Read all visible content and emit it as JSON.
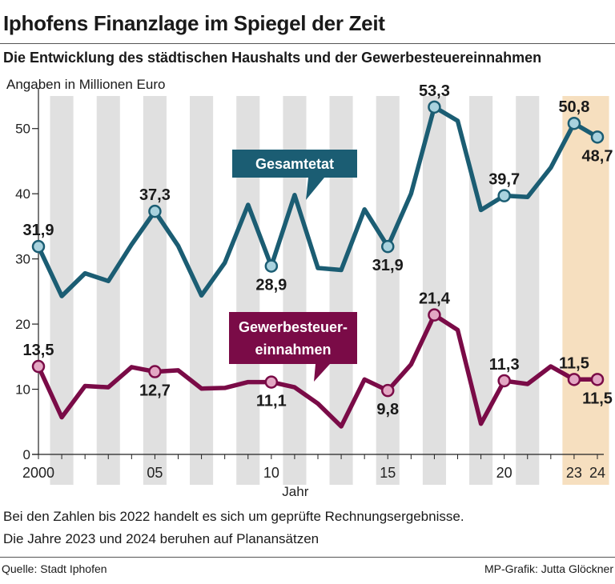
{
  "header": {
    "title": "Iphofens Finanzlage im Spiegel der Zeit",
    "subtitle": "Die Entwicklung des städtischen Haushalts und der Gewerbesteuereinnahmen",
    "unit": "Angaben in Millionen Euro"
  },
  "footer": {
    "note_line1": "Bei den Zahlen bis 2022 handelt es sich um geprüfte Rechnungsergebnisse.",
    "note_line2": "Die Jahre 2023 und 2024 beruhen auf Planansätzen",
    "source": "Quelle: Stadt Iphofen",
    "credit": "MP-Grafik: Jutta Glöckner"
  },
  "colors": {
    "gesamtetat": "#1b5d73",
    "gesamtetat_marker": "#a9d2de",
    "gewerbesteuer": "#7a0b47",
    "gewerbesteuer_marker": "#e3a7c3",
    "stripe": "#e0e0e0",
    "plan_highlight": "#f6dfbf"
  },
  "chart_data": {
    "type": "line",
    "title": "Iphofens Finanzlage im Spiegel der Zeit",
    "xlabel": "Jahr",
    "ylabel": "Angaben in Millionen Euro",
    "ylim": [
      0,
      55
    ],
    "yticks": [
      0,
      10,
      20,
      30,
      40,
      50
    ],
    "x": [
      2000,
      2001,
      2002,
      2003,
      2004,
      2005,
      2006,
      2007,
      2008,
      2009,
      2010,
      2011,
      2012,
      2013,
      2014,
      2015,
      2016,
      2017,
      2018,
      2019,
      2020,
      2021,
      2022,
      2023,
      2024
    ],
    "xticks": [
      {
        "year": 2000,
        "label": "2000"
      },
      {
        "year": 2005,
        "label": "05"
      },
      {
        "year": 2010,
        "label": "10"
      },
      {
        "year": 2015,
        "label": "15"
      },
      {
        "year": 2020,
        "label": "20"
      },
      {
        "year": 2023,
        "label": "23"
      },
      {
        "year": 2024,
        "label": "24"
      }
    ],
    "highlight_range": [
      2023,
      2024
    ],
    "series": [
      {
        "name": "Gesamtetat",
        "color_key": "gesamtetat",
        "values": [
          31.9,
          24.3,
          27.8,
          26.6,
          32.2,
          37.3,
          32.0,
          24.4,
          29.4,
          38.3,
          28.9,
          39.8,
          28.6,
          28.3,
          37.6,
          31.9,
          40.0,
          53.3,
          51.2,
          37.5,
          39.7,
          39.5,
          44.0,
          50.8,
          48.7
        ],
        "labels": [
          {
            "year": 2000,
            "text": "31,9",
            "pos": "above"
          },
          {
            "year": 2005,
            "text": "37,3",
            "pos": "above"
          },
          {
            "year": 2010,
            "text": "28,9",
            "pos": "below"
          },
          {
            "year": 2015,
            "text": "31,9",
            "pos": "below"
          },
          {
            "year": 2017,
            "text": "53,3",
            "pos": "above"
          },
          {
            "year": 2020,
            "text": "39,7",
            "pos": "above"
          },
          {
            "year": 2023,
            "text": "50,8",
            "pos": "above"
          },
          {
            "year": 2024,
            "text": "48,7",
            "pos": "below"
          }
        ],
        "callout": [
          "Gesamtetat"
        ]
      },
      {
        "name": "Gewerbesteuereinnahmen",
        "color_key": "gewerbesteuer",
        "values": [
          13.5,
          5.7,
          10.5,
          10.3,
          13.4,
          12.7,
          12.9,
          10.1,
          10.2,
          11.1,
          11.1,
          10.3,
          7.8,
          4.3,
          11.5,
          9.8,
          13.8,
          21.4,
          19.1,
          4.7,
          11.3,
          10.8,
          13.5,
          11.5,
          11.5
        ],
        "labels": [
          {
            "year": 2000,
            "text": "13,5",
            "pos": "above"
          },
          {
            "year": 2005,
            "text": "12,7",
            "pos": "below"
          },
          {
            "year": 2010,
            "text": "11,1",
            "pos": "below"
          },
          {
            "year": 2015,
            "text": "9,8",
            "pos": "below"
          },
          {
            "year": 2017,
            "text": "21,4",
            "pos": "above"
          },
          {
            "year": 2020,
            "text": "11,3",
            "pos": "above"
          },
          {
            "year": 2023,
            "text": "11,5",
            "pos": "above"
          },
          {
            "year": 2024,
            "text": "11,5",
            "pos": "below"
          }
        ],
        "callout": [
          "Gewerbesteuer-",
          "einnahmen"
        ]
      }
    ]
  }
}
